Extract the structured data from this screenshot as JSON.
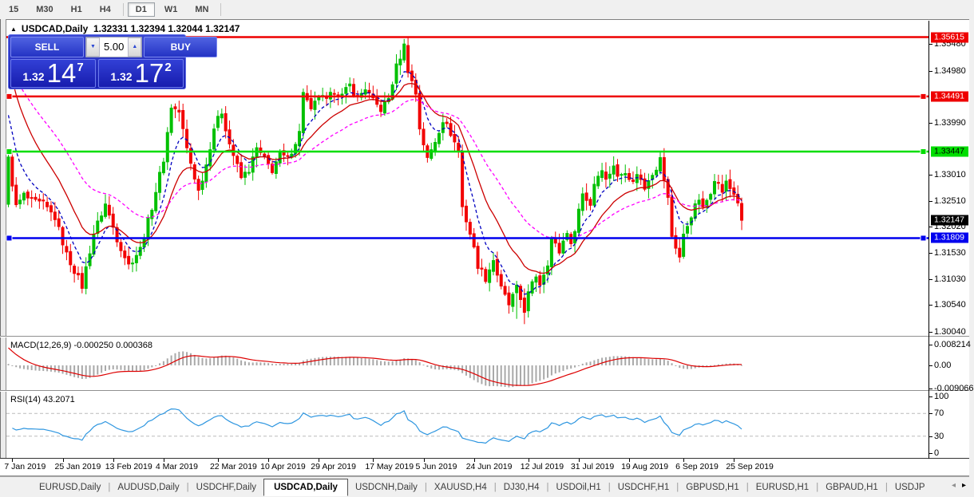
{
  "toolbar": {
    "timeframes": [
      {
        "label": "15",
        "active": false
      },
      {
        "label": "M30",
        "active": false
      },
      {
        "label": "H1",
        "active": false
      },
      {
        "label": "H4",
        "active": false
      },
      {
        "label": "D1",
        "active": true
      },
      {
        "label": "W1",
        "active": false
      },
      {
        "label": "MN",
        "active": false
      }
    ]
  },
  "chart_title": {
    "collapse_icon": "▲",
    "symbol": "USDCAD,Daily",
    "ohlc": "1.32331 1.32394 1.32044 1.32147"
  },
  "trade_panel": {
    "sell_label": "SELL",
    "buy_label": "BUY",
    "volume": "5.00",
    "down_arrow": "▼",
    "up_arrow": "▲",
    "sell_price": {
      "prefix": "1.32",
      "big": "14",
      "sup": "7"
    },
    "buy_price": {
      "prefix": "1.32",
      "big": "17",
      "sup": "2"
    }
  },
  "indicators": {
    "macd_label": "MACD(12,26,9) -0.000250 0.000368",
    "rsi_label": "RSI(14) 43.2071"
  },
  "price_axis": {
    "ticks": [
      "1.35480",
      "1.34980",
      "1.33990",
      "1.33010",
      "1.32510",
      "1.32020",
      "1.31530",
      "1.31030",
      "1.30540",
      "1.30040"
    ],
    "badges": [
      {
        "label": "1.35615",
        "bg": "#ee0000",
        "fg": "#ffffff",
        "price": 1.35615
      },
      {
        "label": "1.34491",
        "bg": "#ee0000",
        "fg": "#ffffff",
        "price": 1.34491
      },
      {
        "label": "1.33447",
        "bg": "#00dd00",
        "fg": "#000000",
        "price": 1.33447
      },
      {
        "label": "1.32147",
        "bg": "#000000",
        "fg": "#ffffff",
        "price": 1.32147
      },
      {
        "label": "1.31809",
        "bg": "#0000ee",
        "fg": "#ffffff",
        "price": 1.31809
      }
    ]
  },
  "macd_axis": [
    {
      "label": "0.008214",
      "value": 0.008214
    },
    {
      "label": "0.00",
      "value": 0
    },
    {
      "label": "-0.009066",
      "value": -0.009066
    }
  ],
  "rsi_axis": [
    {
      "label": "100",
      "value": 100
    },
    {
      "label": "70",
      "value": 70
    },
    {
      "label": "30",
      "value": 30
    },
    {
      "label": "0",
      "value": 0
    }
  ],
  "date_axis": [
    {
      "label": "7 Jan 2019",
      "day": 1
    },
    {
      "label": "25 Jan 2019",
      "day": 14
    },
    {
      "label": "13 Feb 2019",
      "day": 27
    },
    {
      "label": "4 Mar 2019",
      "day": 40
    },
    {
      "label": "22 Mar 2019",
      "day": 54
    },
    {
      "label": "10 Apr 2019",
      "day": 67
    },
    {
      "label": "29 Apr 2019",
      "day": 80
    },
    {
      "label": "17 May 2019",
      "day": 94
    },
    {
      "label": "5 Jun 2019",
      "day": 107
    },
    {
      "label": "24 Jun 2019",
      "day": 120
    },
    {
      "label": "12 Jul 2019",
      "day": 134
    },
    {
      "label": "31 Jul 2019",
      "day": 147
    },
    {
      "label": "19 Aug 2019",
      "day": 160
    },
    {
      "label": "6 Sep 2019",
      "day": 174
    },
    {
      "label": "25 Sep 2019",
      "day": 187
    }
  ],
  "tabs": {
    "items": [
      {
        "label": "EURUSD,Daily",
        "active": false
      },
      {
        "label": "AUDUSD,Daily",
        "active": false
      },
      {
        "label": "USDCHF,Daily",
        "active": false
      },
      {
        "label": "USDCAD,Daily",
        "active": true
      },
      {
        "label": "USDCNH,Daily",
        "active": false
      },
      {
        "label": "XAUUSD,H4",
        "active": false
      },
      {
        "label": "DJ30,H4",
        "active": false
      },
      {
        "label": "USDOil,H1",
        "active": false
      },
      {
        "label": "USDCHF,H1",
        "active": false
      },
      {
        "label": "GBPUSD,H1",
        "active": false
      },
      {
        "label": "EURUSD,H1",
        "active": false
      },
      {
        "label": "GBPAUD,H1",
        "active": false
      },
      {
        "label": "USDJP",
        "active": false
      }
    ],
    "scroll_left": "◂",
    "scroll_right": "▸"
  },
  "chart_data": {
    "type": "candlestick",
    "symbol": "USDCAD",
    "period": "Daily",
    "ohlc_current": {
      "open": 1.32331,
      "high": 1.32394,
      "low": 1.32044,
      "close": 1.32147
    },
    "visible_range": {
      "price_top": 1.35615,
      "price_bottom": 1.3004,
      "date_start": "7 Jan 2019",
      "date_end": "25 Sep 2019"
    },
    "hlines": [
      {
        "price": 1.35615,
        "color": "#ee0000",
        "handles": false
      },
      {
        "price": 1.34491,
        "color": "#ee0000",
        "handles": true
      },
      {
        "price": 1.33447,
        "color": "#00dd00",
        "handles": true
      },
      {
        "price": 1.31809,
        "color": "#0000ee",
        "handles": true
      }
    ],
    "candle_count": 190,
    "close_anchors": [
      [
        0,
        1.333
      ],
      [
        2,
        1.324
      ],
      [
        4,
        1.3262
      ],
      [
        6,
        1.325
      ],
      [
        9,
        1.3245
      ],
      [
        12,
        1.322
      ],
      [
        15,
        1.315
      ],
      [
        19,
        1.309
      ],
      [
        22,
        1.319
      ],
      [
        25,
        1.3245
      ],
      [
        28,
        1.318
      ],
      [
        31,
        1.313
      ],
      [
        34,
        1.316
      ],
      [
        37,
        1.324
      ],
      [
        40,
        1.333
      ],
      [
        42,
        1.343
      ],
      [
        44,
        1.342
      ],
      [
        46,
        1.335
      ],
      [
        49,
        1.327
      ],
      [
        51,
        1.332
      ],
      [
        53,
        1.339
      ],
      [
        55,
        1.342
      ],
      [
        57,
        1.336
      ],
      [
        60,
        1.3295
      ],
      [
        62,
        1.331
      ],
      [
        64,
        1.335
      ],
      [
        66,
        1.333
      ],
      [
        68,
        1.331
      ],
      [
        70,
        1.334
      ],
      [
        72,
        1.333
      ],
      [
        75,
        1.338
      ],
      [
        76,
        1.346
      ],
      [
        78,
        1.342
      ],
      [
        80,
        1.345
      ],
      [
        82,
        1.344
      ],
      [
        84,
        1.346
      ],
      [
        86,
        1.345
      ],
      [
        88,
        1.347
      ],
      [
        90,
        1.3445
      ],
      [
        92,
        1.3465
      ],
      [
        94,
        1.344
      ],
      [
        96,
        1.3425
      ],
      [
        98,
        1.3445
      ],
      [
        100,
        1.3505
      ],
      [
        102,
        1.3545
      ],
      [
        103,
        1.35
      ],
      [
        105,
        1.3455
      ],
      [
        106,
        1.339
      ],
      [
        108,
        1.333
      ],
      [
        110,
        1.3365
      ],
      [
        112,
        1.3405
      ],
      [
        114,
        1.338
      ],
      [
        116,
        1.3345
      ],
      [
        117,
        1.324
      ],
      [
        119,
        1.319
      ],
      [
        121,
        1.313
      ],
      [
        123,
        1.3105
      ],
      [
        125,
        1.314
      ],
      [
        127,
        1.3085
      ],
      [
        129,
        1.3055
      ],
      [
        131,
        1.3085
      ],
      [
        133,
        1.3045
      ],
      [
        134,
        1.3075
      ],
      [
        136,
        1.311
      ],
      [
        137,
        1.3095
      ],
      [
        139,
        1.3135
      ],
      [
        140,
        1.318
      ],
      [
        142,
        1.3155
      ],
      [
        144,
        1.3195
      ],
      [
        145,
        1.3165
      ],
      [
        147,
        1.3235
      ],
      [
        148,
        1.3265
      ],
      [
        150,
        1.3245
      ],
      [
        151,
        1.3285
      ],
      [
        153,
        1.3315
      ],
      [
        154,
        1.329
      ],
      [
        156,
        1.332
      ],
      [
        157,
        1.3295
      ],
      [
        159,
        1.331
      ],
      [
        161,
        1.3285
      ],
      [
        162,
        1.3305
      ],
      [
        164,
        1.3275
      ],
      [
        165,
        1.3295
      ],
      [
        167,
        1.3315
      ],
      [
        168,
        1.333
      ],
      [
        170,
        1.3255
      ],
      [
        171,
        1.3185
      ],
      [
        173,
        1.3145
      ],
      [
        174,
        1.3185
      ],
      [
        176,
        1.3225
      ],
      [
        178,
        1.3255
      ],
      [
        179,
        1.3235
      ],
      [
        181,
        1.327
      ],
      [
        182,
        1.3295
      ],
      [
        184,
        1.327
      ],
      [
        185,
        1.3285
      ],
      [
        187,
        1.3265
      ],
      [
        188,
        1.325
      ],
      [
        189,
        1.32147
      ]
    ],
    "overrides": {
      "high": {
        "102": 1.3558
      },
      "low": {
        "131": 1.3028,
        "133": 1.3018
      }
    },
    "moving_averages": [
      {
        "period": 7,
        "color": "#0000c0",
        "dash": "4,3",
        "seed": 1.344
      },
      {
        "period": 16,
        "color": "#cc0000",
        "dash": "",
        "seed": 1.353
      },
      {
        "period": 34,
        "color": "#ff00ff",
        "dash": "4,3",
        "seed": 1.352
      }
    ],
    "macd": {
      "fast": 12,
      "slow": 26,
      "signal": 9,
      "current_hist": -0.00025,
      "current_signal": 0.000368,
      "axis_max": 0.008214,
      "axis_min": -0.009066,
      "hist_color": "#a9a9a9",
      "signal_color": "#dd0000"
    },
    "rsi": {
      "period": 14,
      "current": 43.2071,
      "grid_levels": [
        70,
        30
      ],
      "color": "#2e96e0"
    },
    "colors": {
      "bull": "#00c000",
      "bear": "#f20000",
      "background": "#ffffff",
      "axis_text": "#000000"
    }
  }
}
